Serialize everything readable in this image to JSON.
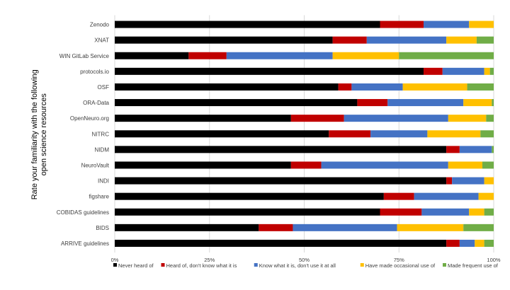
{
  "chart_data": {
    "type": "bar",
    "orientation": "horizontal",
    "stacked": true,
    "percent_stacked": true,
    "ylabel": "Rate your familiarity with the following open science resources",
    "xlabel": "",
    "xlim": [
      0,
      100
    ],
    "x_ticks": [
      "0%",
      "25%",
      "50%",
      "75%",
      "100%"
    ],
    "grid": true,
    "legend_position": "bottom",
    "categories": [
      "Zenodo",
      "XNAT",
      "WIN GitLab Service",
      "protocols.io",
      "OSF",
      "ORA-Data",
      "OpenNeuro.org",
      "NITRC",
      "NIDM",
      "NeuroVault",
      "INDI",
      "figshare",
      "COBIDAS guidelines",
      "BIDS",
      "ARRIVE guidelines"
    ],
    "series": [
      {
        "name": "Never heard of",
        "color": "#000000",
        "values": [
          70,
          57.5,
          19.5,
          81.5,
          59,
          64,
          46.5,
          56.5,
          87.5,
          46.5,
          87.5,
          71,
          70,
          38,
          87.5
        ]
      },
      {
        "name": "Heard of, don't know what it is",
        "color": "#c00000",
        "values": [
          11.5,
          9,
          10,
          5,
          3.5,
          8,
          14,
          11,
          3.5,
          8,
          1.5,
          8,
          11,
          9,
          3.5
        ]
      },
      {
        "name": "Know what it is, don't use it at all",
        "color": "#4472c4",
        "values": [
          12,
          21,
          28,
          11,
          13.5,
          20,
          27.5,
          15,
          8.5,
          33.5,
          8.5,
          17,
          12.5,
          27.5,
          4
        ]
      },
      {
        "name": "Have made occasional use of",
        "color": "#ffc000",
        "values": [
          6.5,
          8,
          17.5,
          1.5,
          17,
          7.5,
          10,
          14,
          0,
          9,
          2.5,
          4,
          4,
          17.5,
          2.5
        ]
      },
      {
        "name": "Made frequent use of",
        "color": "#70ad47",
        "values": [
          0,
          4.5,
          25,
          1,
          7,
          0.5,
          2,
          3.5,
          0.5,
          3,
          0,
          0,
          2.5,
          8,
          2.5
        ]
      }
    ]
  }
}
